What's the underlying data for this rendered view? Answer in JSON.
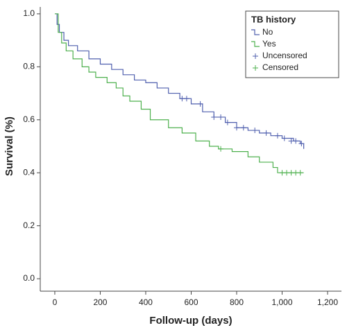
{
  "chart_data": {
    "type": "step",
    "x_label": "Follow-up (days)",
    "y_label": "Survival (%)",
    "xlim": [
      -64,
      1261
    ],
    "ylim": [
      -0.047,
      1.026
    ],
    "xticks": [
      0,
      200,
      400,
      600,
      800,
      {
        "value": 1000,
        "label": "1,000"
      },
      {
        "value": 1200,
        "label": "1,200"
      }
    ],
    "yticks": [
      {
        "value": 0,
        "label": "0.0"
      },
      {
        "value": 0.2,
        "label": "0.2"
      },
      {
        "value": 0.4,
        "label": "0.4"
      },
      {
        "value": 0.6,
        "label": "0.6"
      },
      {
        "value": 0.8,
        "label": "0.8"
      },
      {
        "value": 1,
        "label": "1.0"
      }
    ],
    "legend_title": "TB history",
    "legend_position": "upper right",
    "series": [
      {
        "name": "No",
        "color": "#4f5fae",
        "x": [
          0,
          10,
          20,
          40,
          60,
          100,
          150,
          200,
          250,
          300,
          350,
          400,
          450,
          500,
          550,
          600,
          650,
          700,
          750,
          800,
          850,
          900,
          950,
          1000,
          1050,
          1080,
          1095
        ],
        "values": [
          1.0,
          0.96,
          0.93,
          0.9,
          0.88,
          0.86,
          0.83,
          0.81,
          0.79,
          0.77,
          0.75,
          0.74,
          0.72,
          0.7,
          0.68,
          0.66,
          0.63,
          0.61,
          0.59,
          0.57,
          0.56,
          0.55,
          0.54,
          0.53,
          0.52,
          0.51,
          0.49
        ],
        "censored_x": [
          560,
          580,
          640,
          700,
          730,
          760,
          800,
          830,
          880,
          930,
          980,
          1010,
          1040,
          1060,
          1085
        ],
        "censored_values": [
          0.68,
          0.68,
          0.66,
          0.61,
          0.61,
          0.59,
          0.57,
          0.57,
          0.56,
          0.55,
          0.54,
          0.53,
          0.52,
          0.52,
          0.51
        ]
      },
      {
        "name": "Yes",
        "color": "#4db04d",
        "x": [
          0,
          15,
          30,
          50,
          80,
          120,
          150,
          180,
          230,
          270,
          300,
          330,
          380,
          420,
          500,
          560,
          620,
          680,
          720,
          780,
          850,
          900,
          960,
          980,
          1095
        ],
        "values": [
          1.0,
          0.93,
          0.89,
          0.86,
          0.83,
          0.8,
          0.78,
          0.76,
          0.74,
          0.72,
          0.69,
          0.67,
          0.64,
          0.6,
          0.57,
          0.55,
          0.52,
          0.5,
          0.49,
          0.48,
          0.46,
          0.44,
          0.42,
          0.4,
          0.4
        ],
        "censored_x": [
          730,
          1000,
          1020,
          1040,
          1060,
          1080
        ],
        "censored_values": [
          0.49,
          0.4,
          0.4,
          0.4,
          0.4,
          0.4
        ]
      }
    ],
    "censor_legend": [
      {
        "name": "Uncensored",
        "color": "#4f5fae"
      },
      {
        "name": "Censored",
        "color": "#4db04d"
      }
    ]
  }
}
